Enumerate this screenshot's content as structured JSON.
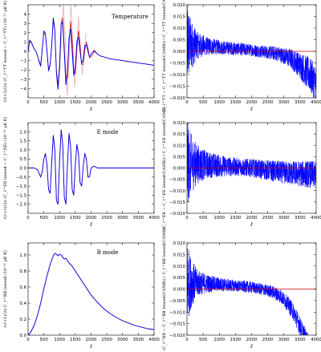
{
  "chart_data": [
    {
      "type": "line",
      "panel": "temperature-diff",
      "annotation": "Temperature",
      "xlabel": "ℓ",
      "ylabel": "ℓ(ℓ+1)/2π (C_ℓ^TT lensed − C_ℓ^TT) (10⁻¹¹ μK K)",
      "xlim": [
        0,
        4000
      ],
      "ylim": [
        -5,
        5
      ],
      "xticks": [
        0,
        500,
        1000,
        1500,
        2000,
        2500,
        3000,
        3500,
        4000
      ],
      "yticks": [
        -4,
        -3,
        -2,
        -1,
        0,
        1,
        2,
        3,
        4
      ],
      "xtick_labels": [
        "0",
        "500",
        "1000",
        "1500",
        "2000",
        "2500",
        "3000",
        "3500",
        "4000"
      ],
      "ytick_labels": [
        "−4",
        "−3",
        "−2",
        "−1",
        "0",
        "1",
        "2",
        "3",
        "4"
      ],
      "series": [
        {
          "color": "#0000ee",
          "x": [
            2,
            50,
            100,
            150,
            200,
            250,
            300,
            350,
            400,
            450,
            500,
            550,
            600,
            650,
            700,
            750,
            800,
            850,
            900,
            950,
            1000,
            1050,
            1100,
            1150,
            1200,
            1250,
            1300,
            1350,
            1400,
            1450,
            1500,
            1550,
            1600,
            1650,
            1700,
            1750,
            1800,
            1850,
            1900,
            1950,
            2000,
            2100,
            2200,
            2300,
            2400,
            2500,
            2600,
            2800,
            3000,
            3200,
            3400,
            3600,
            3800,
            4000
          ],
          "y": [
            0,
            1.2,
            1.0,
            0.6,
            0.2,
            0.0,
            -0.5,
            -1.1,
            -1.6,
            0.2,
            2.2,
            1.9,
            0.0,
            -2.1,
            -1.5,
            0.6,
            3.6,
            2.2,
            -2.4,
            -4.1,
            -1.8,
            2.9,
            3.2,
            -0.2,
            -3.6,
            -2.3,
            1.5,
            2.4,
            0.0,
            -2.6,
            -1.7,
            1.1,
            1.5,
            0.0,
            -1.3,
            -0.9,
            0.6,
            0.7,
            0.0,
            -0.6,
            -0.3,
            0.1,
            -0.3,
            -0.5,
            -0.6,
            -0.7,
            -0.8,
            -0.9,
            -1.0,
            -1.1,
            -1.2,
            -1.3,
            -1.4,
            -1.5
          ]
        },
        {
          "color": "#cc0000",
          "x": [
            2,
            50,
            100,
            150,
            200,
            250,
            300,
            350,
            400,
            450,
            500,
            550,
            600,
            650,
            700,
            750,
            800,
            850,
            900,
            950,
            1000,
            1050,
            1100,
            1150,
            1200,
            1250,
            1300,
            1350,
            1400,
            1450,
            1500,
            1550,
            1600,
            1650,
            1700,
            1750,
            1800,
            1850,
            1900,
            1950,
            2000,
            2100,
            2200,
            2300,
            2400,
            2500,
            2600,
            2800,
            3000,
            3200,
            3400,
            3600,
            3800,
            4000
          ],
          "y": [
            0,
            1.1,
            0.95,
            0.55,
            0.2,
            0.0,
            -0.5,
            -1.0,
            -1.5,
            0.3,
            2.0,
            1.8,
            0.1,
            -1.9,
            -1.4,
            0.8,
            3.3,
            2.1,
            -2.0,
            -3.6,
            -1.3,
            3.2,
            3.6,
            0.4,
            -3.0,
            -2.8,
            1.0,
            3.2,
            1.0,
            -2.2,
            -2.4,
            0.4,
            2.2,
            0.8,
            -1.4,
            -1.4,
            0.1,
            1.0,
            0.4,
            -0.7,
            -0.6,
            0.0,
            -0.3,
            -0.5,
            -0.6,
            -0.7,
            -0.8,
            -0.9,
            -1.0,
            -1.1,
            -1.2,
            -1.3,
            -1.4,
            -1.5
          ]
        },
        {
          "color": "#e8a0a0",
          "x": [
            1000,
            1060,
            1120,
            1180,
            1240,
            1300,
            1360,
            1420,
            1480,
            1540,
            1600,
            1660,
            1720,
            1780,
            1840
          ],
          "y": [
            -2.0,
            1.5,
            5.0,
            1.5,
            -4.8,
            -1.0,
            4.9,
            1.0,
            -3.8,
            -0.5,
            3.8,
            0.0,
            -2.5,
            0.0,
            2.0
          ]
        }
      ]
    },
    {
      "type": "line",
      "panel": "temperature-ratio",
      "xlabel": "ℓ",
      "ylabel": "(C_ℓ^TT − C_ℓ^TT lensed(CAMB)) / C_ℓ^TT lensed(CAMB)",
      "xlim": [
        0,
        4000
      ],
      "ylim": [
        -0.02,
        0.02
      ],
      "xticks": [
        0,
        500,
        1000,
        1500,
        2000,
        2500,
        3000,
        3500,
        4000
      ],
      "yticks": [
        -0.02,
        -0.015,
        -0.01,
        -0.005,
        0.0,
        0.005,
        0.01,
        0.015,
        0.02
      ],
      "xtick_labels": [
        "0",
        "500",
        "1000",
        "1500",
        "2000",
        "2500",
        "3000",
        "3500",
        "4000"
      ],
      "ytick_labels": [
        "−0.020",
        "−0.015",
        "−0.010",
        "−0.005",
        "0.000",
        "0.005",
        "0.010",
        "0.015",
        "0.020"
      ],
      "noise": {
        "envelope_x": [
          0,
          100,
          300,
          600,
          1000,
          1500,
          2000,
          2500,
          3000,
          3400,
          3700,
          4000
        ],
        "envelope": [
          0.02,
          0.012,
          0.006,
          0.004,
          0.003,
          0.0028,
          0.0026,
          0.0028,
          0.0035,
          0.005,
          0.007,
          0.008
        ],
        "trend_x": [
          0,
          2000,
          2800,
          3200,
          3500,
          3800,
          4000
        ],
        "trend": [
          0.003,
          0.0005,
          -0.001,
          -0.003,
          -0.006,
          -0.01,
          -0.014
        ]
      },
      "reference_line": 0
    },
    {
      "type": "line",
      "panel": "e-mode-diff",
      "annotation": "E mode",
      "xlabel": "ℓ",
      "ylabel": "ℓ(ℓ+1)/2π (C_ℓ^EE lensed − C_ℓ^EE) (10⁻¹¹ μK K)",
      "xlim": [
        0,
        4000
      ],
      "ylim": [
        -2.5,
        2.5
      ],
      "xticks": [
        0,
        500,
        1000,
        1500,
        2000,
        2500,
        3000,
        3500,
        4000
      ],
      "yticks": [
        -2.0,
        -1.5,
        -1.0,
        -0.5,
        0.0,
        0.5,
        1.0,
        1.5,
        2.0
      ],
      "xtick_labels": [
        "0",
        "500",
        "1000",
        "1500",
        "2000",
        "2500",
        "3000",
        "3500",
        "4000"
      ],
      "ytick_labels": [
        "−2.0",
        "−1.5",
        "−1.0",
        "−0.5",
        "0.0",
        "0.5",
        "1.0",
        "1.5",
        "2.0"
      ],
      "series": [
        {
          "color": "#0000ee",
          "x": [
            2,
            200,
            300,
            350,
            400,
            450,
            500,
            550,
            600,
            650,
            700,
            750,
            800,
            850,
            900,
            950,
            1000,
            1050,
            1100,
            1150,
            1200,
            1250,
            1300,
            1350,
            1400,
            1450,
            1500,
            1550,
            1600,
            1650,
            1700,
            1750,
            1800,
            1850,
            1900,
            1950,
            2000,
            2100,
            2200,
            2400,
            2600,
            2800,
            3000,
            3200,
            3400,
            3600,
            3800,
            4000
          ],
          "y": [
            0,
            0,
            -0.1,
            -0.3,
            -0.5,
            -0.2,
            0.5,
            0.8,
            0.2,
            -1.2,
            -1.4,
            0.3,
            1.8,
            1.0,
            -1.8,
            -2.0,
            0.4,
            2.1,
            1.3,
            -1.6,
            -2.0,
            0.2,
            1.9,
            1.2,
            -1.2,
            -1.5,
            0.2,
            1.3,
            0.8,
            -0.8,
            -1.0,
            0.1,
            0.8,
            0.5,
            -0.5,
            -0.5,
            0.0,
            0.1,
            0.0,
            0.0,
            0.0,
            0.0,
            0.0,
            0.0,
            0.0,
            0.0,
            0.0,
            0.0
          ]
        },
        {
          "color": "#cc0000",
          "x": [
            2,
            200,
            300,
            350,
            400,
            450,
            500,
            550,
            600,
            650,
            700,
            750,
            800,
            850,
            900,
            950,
            1000,
            1050,
            1100,
            1150,
            1200,
            1250,
            1300,
            1350,
            1400,
            1450,
            1500,
            1550,
            1600,
            1650,
            1700,
            1750,
            1800,
            1850,
            1900,
            1950,
            2000,
            2100,
            2200,
            2400,
            2600,
            2800,
            3000,
            3200,
            3400,
            3600,
            3800,
            4000
          ],
          "y": [
            0,
            0,
            -0.1,
            -0.3,
            -0.5,
            -0.2,
            0.5,
            0.8,
            0.2,
            -1.2,
            -1.4,
            0.3,
            1.8,
            1.0,
            -1.8,
            -2.0,
            0.4,
            2.1,
            1.3,
            -1.6,
            -2.0,
            0.2,
            1.9,
            1.2,
            -1.2,
            -1.5,
            0.2,
            1.3,
            0.8,
            -0.8,
            -1.0,
            0.1,
            0.8,
            0.5,
            -0.5,
            -0.5,
            0.0,
            0.1,
            0.0,
            0.0,
            0.0,
            0.0,
            0.0,
            0.0,
            0.0,
            0.0,
            0.0,
            0.0
          ]
        }
      ]
    },
    {
      "type": "line",
      "panel": "e-mode-ratio",
      "xlabel": "ℓ",
      "ylabel": "(C_ℓ^EE − C_ℓ^EE lensed(CAMB)) / C_ℓ^EE lensed(CAMB)",
      "xlim": [
        0,
        4000
      ],
      "ylim": [
        -0.02,
        0.02
      ],
      "xticks": [
        0,
        500,
        1000,
        1500,
        2000,
        2500,
        3000,
        3500,
        4000
      ],
      "yticks": [
        -0.02,
        -0.015,
        -0.01,
        -0.005,
        0.0,
        0.005,
        0.01,
        0.015,
        0.02
      ],
      "xtick_labels": [
        "0",
        "500",
        "1000",
        "1500",
        "2000",
        "2500",
        "3000",
        "3500",
        "4000"
      ],
      "ytick_labels": [
        "−0.020",
        "−0.015",
        "−0.010",
        "−0.005",
        "0.000",
        "0.005",
        "0.010",
        "0.015",
        "0.020"
      ],
      "noise": {
        "envelope_x": [
          0,
          100,
          300,
          600,
          1000,
          1500,
          2000,
          2500,
          3000,
          3400,
          3700,
          4000
        ],
        "envelope": [
          0.02,
          0.014,
          0.009,
          0.006,
          0.005,
          0.004,
          0.004,
          0.0045,
          0.005,
          0.0055,
          0.006,
          0.006
        ],
        "trend_x": [
          0,
          1000,
          2000,
          3000,
          4000
        ],
        "trend": [
          0.002,
          0.001,
          0.0,
          -0.002,
          -0.003
        ]
      },
      "reference_line": 0
    },
    {
      "type": "line",
      "panel": "b-mode",
      "annotation": "B mode",
      "xlabel": "ℓ",
      "ylabel": "ℓ(ℓ+1)/2π C_ℓ^BB lensed (10⁻¹¹ μK K)",
      "xlim": [
        0,
        4000
      ],
      "ylim": [
        0,
        1.15
      ],
      "xticks": [
        0,
        500,
        1000,
        1500,
        2000,
        2500,
        3000,
        3500,
        4000
      ],
      "yticks": [
        0.0,
        0.2,
        0.4,
        0.6,
        0.8,
        1.0
      ],
      "xtick_labels": [
        "0",
        "500",
        "1000",
        "1500",
        "2000",
        "2500",
        "3000",
        "3500",
        "4000"
      ],
      "ytick_labels": [
        "0.0",
        "0.2",
        "0.4",
        "0.6",
        "0.8",
        "1.0"
      ],
      "series": [
        {
          "color": "#0000ee",
          "x": [
            2,
            50,
            100,
            200,
            300,
            400,
            500,
            600,
            700,
            800,
            850,
            900,
            950,
            1000,
            1050,
            1100,
            1150,
            1200,
            1250,
            1300,
            1400,
            1500,
            1600,
            1800,
            2000,
            2200,
            2400,
            2600,
            2800,
            3000,
            3200,
            3400,
            3600,
            3800,
            4000
          ],
          "y": [
            0.0,
            0.02,
            0.05,
            0.13,
            0.25,
            0.4,
            0.58,
            0.74,
            0.88,
            0.99,
            1.02,
            1.01,
            0.99,
            1.01,
            1.0,
            0.97,
            0.95,
            0.96,
            0.93,
            0.9,
            0.86,
            0.8,
            0.74,
            0.62,
            0.5,
            0.41,
            0.33,
            0.27,
            0.22,
            0.18,
            0.15,
            0.12,
            0.1,
            0.08,
            0.07
          ]
        },
        {
          "color": "#cc0000",
          "x": [
            2,
            50,
            100,
            200,
            300,
            400,
            500,
            600,
            700,
            800,
            850,
            900,
            950,
            1000,
            1050,
            1100,
            1150,
            1200,
            1250,
            1300,
            1400,
            1500,
            1600,
            1800,
            2000,
            2200,
            2400,
            2600,
            2800,
            3000,
            3200,
            3400,
            3600,
            3800,
            4000
          ],
          "y": [
            0.0,
            0.02,
            0.05,
            0.13,
            0.25,
            0.4,
            0.58,
            0.74,
            0.88,
            0.99,
            1.02,
            1.01,
            0.99,
            1.01,
            1.0,
            0.97,
            0.95,
            0.96,
            0.93,
            0.9,
            0.86,
            0.8,
            0.74,
            0.62,
            0.5,
            0.41,
            0.33,
            0.27,
            0.22,
            0.18,
            0.15,
            0.12,
            0.1,
            0.08,
            0.07
          ]
        }
      ]
    },
    {
      "type": "line",
      "panel": "b-mode-ratio",
      "xlabel": "ℓ",
      "ylabel": "(C_ℓ^BB − C_ℓ^BB lensed(CAMB)) / C_ℓ^BB lensed(CAMB)",
      "xlim": [
        0,
        4000
      ],
      "ylim": [
        -0.02,
        0.02
      ],
      "xticks": [
        0,
        500,
        1000,
        1500,
        2000,
        2500,
        3000,
        3500,
        4000
      ],
      "yticks": [
        -0.02,
        -0.015,
        -0.01,
        -0.005,
        0.0,
        0.005,
        0.01,
        0.015,
        0.02
      ],
      "xtick_labels": [
        "0",
        "500",
        "1000",
        "1500",
        "2000",
        "2500",
        "3000",
        "3500",
        "4000"
      ],
      "ytick_labels": [
        "−0.020",
        "−0.015",
        "−0.010",
        "−0.005",
        "0.000",
        "0.005",
        "0.010",
        "0.015",
        "0.020"
      ],
      "noise": {
        "envelope_x": [
          0,
          100,
          300,
          600,
          1000,
          1500,
          2000,
          2500,
          2800,
          3000,
          3200,
          3400,
          3600,
          4000
        ],
        "envelope": [
          0.02,
          0.012,
          0.006,
          0.004,
          0.003,
          0.0025,
          0.0025,
          0.0025,
          0.003,
          0.003,
          0.0035,
          0.004,
          0.004,
          0.004
        ],
        "trend_x": [
          0,
          1000,
          2000,
          2600,
          2900,
          3100,
          3300,
          3500,
          3700,
          4000
        ],
        "trend": [
          0.003,
          0.002,
          0.0008,
          -0.001,
          -0.003,
          -0.006,
          -0.01,
          -0.016,
          -0.022,
          -0.03
        ]
      },
      "reference_line": 0
    }
  ]
}
